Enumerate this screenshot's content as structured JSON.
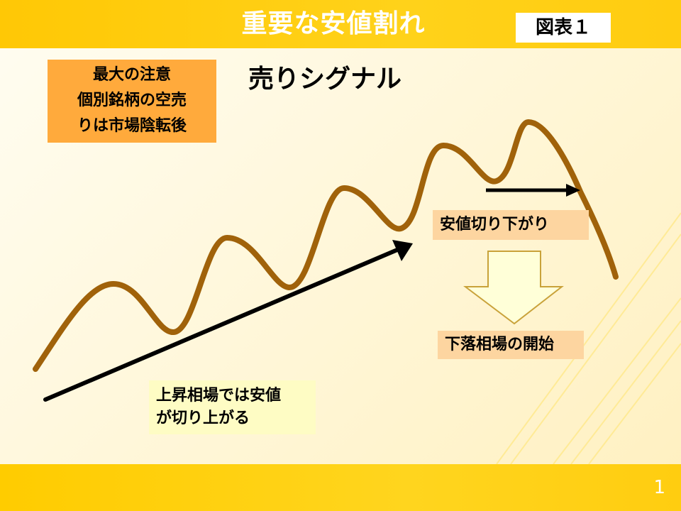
{
  "header": {
    "title": "重要な安値割れ",
    "figure_label": "図表１"
  },
  "note": {
    "lines": [
      "最大の注意",
      "個別銘柄の空売",
      "りは市場陰転後"
    ]
  },
  "signal_title": "売りシグナル",
  "callouts": {
    "support_break": "安値切り下がり",
    "market_decline": "下落相場の開始",
    "uptrend": [
      "上昇相場では安値",
      "が切り上がる"
    ]
  },
  "footer": {
    "page_number": "1"
  },
  "colors": {
    "banner": "#ffc805",
    "price_line": "#a0620a",
    "note_box": "#ffaa3c",
    "callout_orange": "#fdd5a0",
    "callout_yellow": "#fefcc4",
    "down_arrow_fill": "#ffffd8",
    "down_arrow_stroke": "#c9a23a"
  }
}
